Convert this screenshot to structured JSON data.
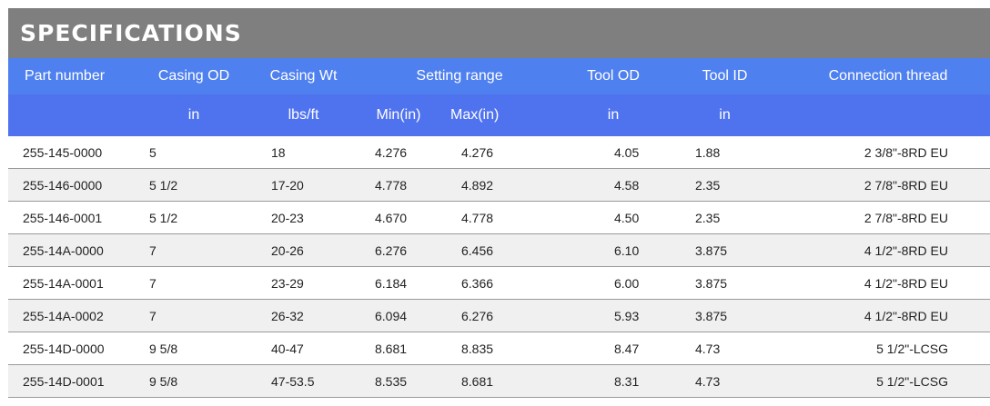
{
  "title": "SPECIFICATIONS",
  "headers": {
    "part_number": "Part number",
    "casing_od": "Casing OD",
    "casing_wt": "Casing Wt",
    "setting_range": "Setting range",
    "tool_od": "Tool OD",
    "tool_id": "Tool ID",
    "connection_thread": "Connection thread"
  },
  "units": {
    "casing_od": "in",
    "casing_wt": "lbs/ft",
    "min": "Min(in)",
    "max": "Max(in)",
    "tool_od": "in",
    "tool_id": "in"
  },
  "rows": [
    {
      "part": "255-145-0000",
      "od": "5",
      "wt": "18",
      "min": "4.276",
      "max": "4.276",
      "tool_od": "4.05",
      "tool_id": "1.88",
      "thread": "2 3/8\"-8RD EU"
    },
    {
      "part": "255-146-0000",
      "od": "5 1/2",
      "wt": "17-20",
      "min": "4.778",
      "max": "4.892",
      "tool_od": "4.58",
      "tool_id": "2.35",
      "thread": "2 7/8\"-8RD EU"
    },
    {
      "part": "255-146-0001",
      "od": "5 1/2",
      "wt": "20-23",
      "min": "4.670",
      "max": "4.778",
      "tool_od": "4.50",
      "tool_id": "2.35",
      "thread": "2 7/8\"-8RD EU"
    },
    {
      "part": "255-14A-0000",
      "od": "7",
      "wt": "20-26",
      "min": "6.276",
      "max": "6.456",
      "tool_od": "6.10",
      "tool_id": "3.875",
      "thread": "4 1/2\"-8RD EU"
    },
    {
      "part": "255-14A-0001",
      "od": "7",
      "wt": "23-29",
      "min": "6.184",
      "max": "6.366",
      "tool_od": "6.00",
      "tool_id": "3.875",
      "thread": "4 1/2\"-8RD EU"
    },
    {
      "part": "255-14A-0002",
      "od": "7",
      "wt": "26-32",
      "min": "6.094",
      "max": "6.276",
      "tool_od": "5.93",
      "tool_id": "3.875",
      "thread": "4 1/2\"-8RD EU"
    },
    {
      "part": "255-14D-0000",
      "od": "9 5/8",
      "wt": "40-47",
      "min": "8.681",
      "max": "8.835",
      "tool_od": "8.47",
      "tool_id": "4.73",
      "thread": "5 1/2\"-LCSG"
    },
    {
      "part": "255-14D-0001",
      "od": "9 5/8",
      "wt": "47-53.5",
      "min": "8.535",
      "max": "8.681",
      "tool_od": "8.31",
      "tool_id": "4.73",
      "thread": "5 1/2\"-LCSG"
    }
  ]
}
